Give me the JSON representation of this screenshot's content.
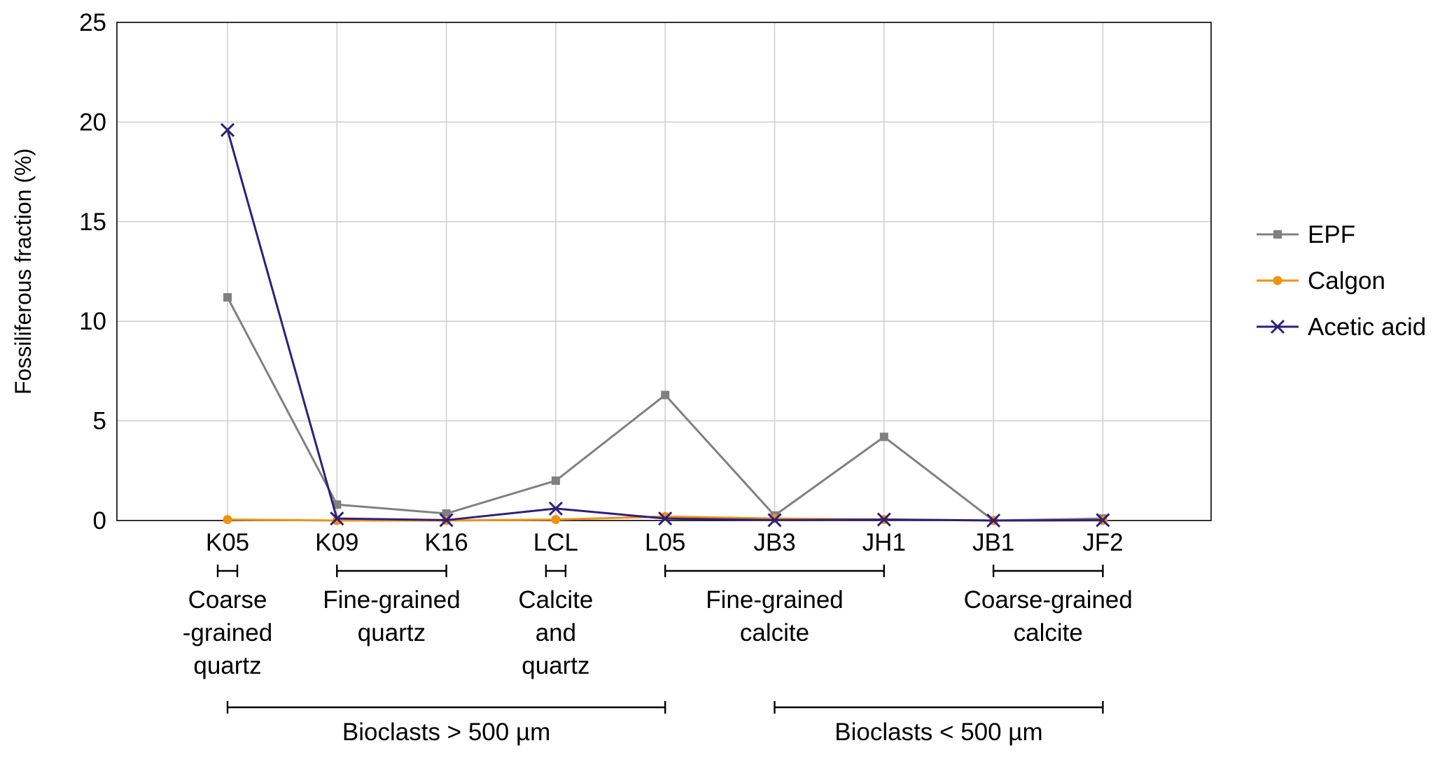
{
  "chart_data": {
    "type": "line",
    "ylabel": "Fossiliferous fraction (%)",
    "xlabel": "",
    "ylim": [
      0,
      25
    ],
    "yticks": [
      0,
      5,
      10,
      15,
      20,
      25
    ],
    "grid": true,
    "legend_position": "right",
    "categories": [
      "K05",
      "K09",
      "K16",
      "LCL",
      "L05",
      "JB3",
      "JH1",
      "JB1",
      "JF2"
    ],
    "series": [
      {
        "name": "EPF",
        "color": "#808080",
        "marker": "square",
        "values": [
          11.2,
          0.8,
          0.35,
          2.0,
          6.3,
          0.25,
          4.2,
          0.0,
          0.1
        ]
      },
      {
        "name": "Calgon",
        "color": "#f29111",
        "marker": "circle",
        "values": [
          0.05,
          0.0,
          0.0,
          0.05,
          0.2,
          0.1,
          0.05,
          0.0,
          0.0
        ]
      },
      {
        "name": "Acetic acid",
        "color": "#2e1f7e",
        "marker": "x",
        "values": [
          19.6,
          0.1,
          0.02,
          0.6,
          0.1,
          0.02,
          0.05,
          0.0,
          0.02
        ]
      }
    ],
    "sample_groups": [
      {
        "lines": [
          "Coarse",
          "-grained",
          "quartz"
        ],
        "from": "K05",
        "to": "K05"
      },
      {
        "lines": [
          "Fine-grained",
          "quartz"
        ],
        "from": "K09",
        "to": "K16"
      },
      {
        "lines": [
          "Calcite",
          "and",
          "quartz"
        ],
        "from": "LCL",
        "to": "LCL"
      },
      {
        "lines": [
          "Fine-grained",
          "calcite"
        ],
        "from": "L05",
        "to": "JH1"
      },
      {
        "lines": [
          "Coarse-grained",
          "calcite"
        ],
        "from": "JB1",
        "to": "JF2"
      }
    ],
    "size_groups": [
      {
        "label": "Bioclasts > 500 µm",
        "from": "K05",
        "to": "L05"
      },
      {
        "label": "Bioclasts < 500 µm",
        "from": "JB3",
        "to": "JF2"
      }
    ]
  }
}
